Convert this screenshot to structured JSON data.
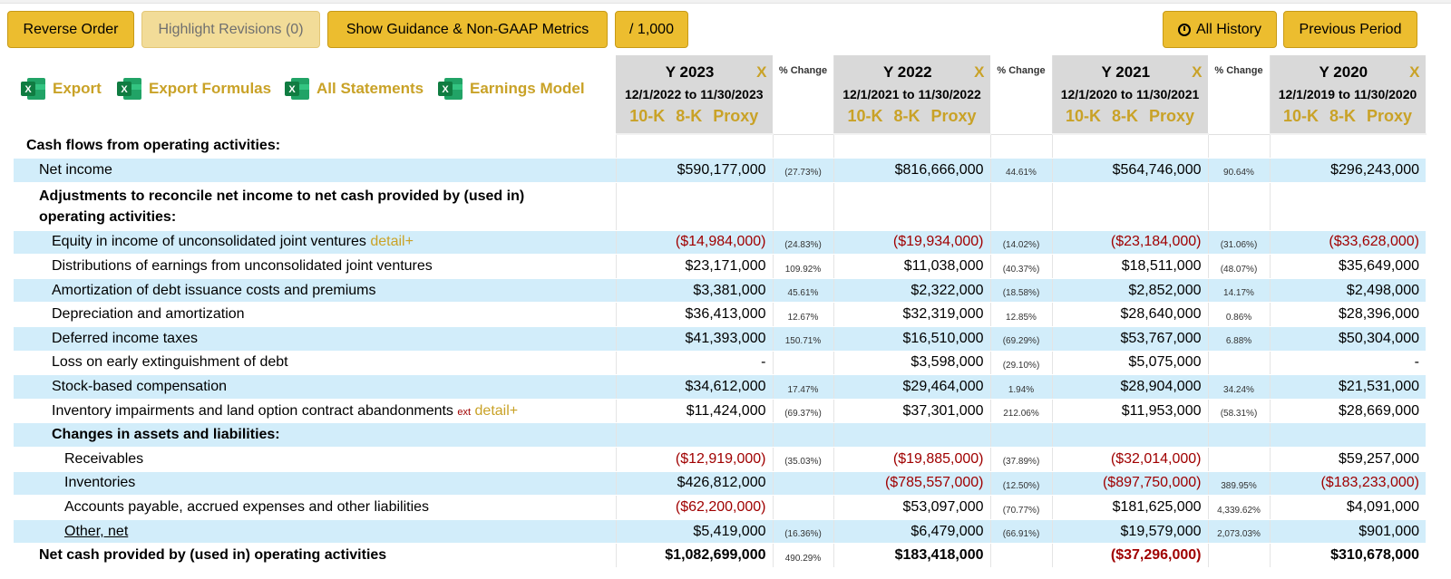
{
  "toolbar": {
    "reverse_order": "Reverse Order",
    "highlight_revisions": "Highlight Revisions (0)",
    "show_guidance": "Show Guidance & Non-GAAP Metrics",
    "scale": "/ 1,000",
    "all_history": "All History",
    "previous_period": "Previous Period"
  },
  "export_links": {
    "export": "Export",
    "export_formulas": "Export Formulas",
    "all_statements": "All Statements",
    "earnings_model": "Earnings Model"
  },
  "pct_change_header": "% Change",
  "columns": [
    {
      "year": "Y 2023",
      "x": "X",
      "range": "12/1/2022 to 11/30/2023",
      "links": [
        "10-K",
        "8-K",
        "Proxy"
      ]
    },
    {
      "year": "Y 2022",
      "x": "X",
      "range": "12/1/2021 to 11/30/2022",
      "links": [
        "10-K",
        "8-K",
        "Proxy"
      ]
    },
    {
      "year": "Y 2021",
      "x": "X",
      "range": "12/1/2020 to 11/30/2021",
      "links": [
        "10-K",
        "8-K",
        "Proxy"
      ]
    },
    {
      "year": "Y 2020",
      "x": "X",
      "range": "12/1/2019 to 11/30/2020",
      "links": [
        "10-K",
        "8-K",
        "Proxy"
      ]
    }
  ],
  "rows": [
    {
      "label": "Cash flows from operating activities:",
      "values": [
        "",
        "",
        "",
        ""
      ],
      "pcts": [
        "",
        "",
        ""
      ]
    },
    {
      "label": "Net income",
      "values": [
        "$590,177,000",
        "$816,666,000",
        "$564,746,000",
        "$296,243,000"
      ],
      "pcts": [
        "(27.73%)",
        "44.61%",
        "90.64%"
      ]
    },
    {
      "label": "Adjustments to reconcile net income to net cash provided by (used in) operating activities:",
      "values": [
        "",
        "",
        "",
        ""
      ],
      "pcts": [
        "",
        "",
        ""
      ]
    },
    {
      "label": "Equity in income of unconsolidated joint ventures",
      "detail": "detail+",
      "values": [
        "($14,984,000)",
        "($19,934,000)",
        "($23,184,000)",
        "($33,628,000)"
      ],
      "pcts": [
        "(24.83%)",
        "(14.02%)",
        "(31.06%)"
      ]
    },
    {
      "label": "Distributions of earnings from unconsolidated joint ventures",
      "values": [
        "$23,171,000",
        "$11,038,000",
        "$18,511,000",
        "$35,649,000"
      ],
      "pcts": [
        "109.92%",
        "(40.37%)",
        "(48.07%)"
      ]
    },
    {
      "label": "Amortization of debt issuance costs and premiums",
      "values": [
        "$3,381,000",
        "$2,322,000",
        "$2,852,000",
        "$2,498,000"
      ],
      "pcts": [
        "45.61%",
        "(18.58%)",
        "14.17%"
      ]
    },
    {
      "label": "Depreciation and amortization",
      "values": [
        "$36,413,000",
        "$32,319,000",
        "$28,640,000",
        "$28,396,000"
      ],
      "pcts": [
        "12.67%",
        "12.85%",
        "0.86%"
      ]
    },
    {
      "label": "Deferred income taxes",
      "values": [
        "$41,393,000",
        "$16,510,000",
        "$53,767,000",
        "$50,304,000"
      ],
      "pcts": [
        "150.71%",
        "(69.29%)",
        "6.88%"
      ]
    },
    {
      "label": "Loss on early extinguishment of debt",
      "values": [
        "-",
        "$3,598,000",
        "$5,075,000",
        "-"
      ],
      "pcts": [
        "",
        "(29.10%)",
        ""
      ]
    },
    {
      "label": "Stock-based compensation",
      "values": [
        "$34,612,000",
        "$29,464,000",
        "$28,904,000",
        "$21,531,000"
      ],
      "pcts": [
        "17.47%",
        "1.94%",
        "34.24%"
      ]
    },
    {
      "label": "Inventory impairments and land option contract abandonments",
      "ext": "ext",
      "detail": "detail+",
      "values": [
        "$11,424,000",
        "$37,301,000",
        "$11,953,000",
        "$28,669,000"
      ],
      "pcts": [
        "(69.37%)",
        "212.06%",
        "(58.31%)"
      ]
    },
    {
      "label": "Changes in assets and liabilities:",
      "values": [
        "",
        "",
        "",
        ""
      ],
      "pcts": [
        "",
        "",
        ""
      ]
    },
    {
      "label": "Receivables",
      "values": [
        "($12,919,000)",
        "($19,885,000)",
        "($32,014,000)",
        "$59,257,000"
      ],
      "pcts": [
        "(35.03%)",
        "(37.89%)",
        ""
      ]
    },
    {
      "label": "Inventories",
      "values": [
        "$426,812,000",
        "($785,557,000)",
        "($897,750,000)",
        "($183,233,000)"
      ],
      "pcts": [
        "",
        "(12.50%)",
        "389.95%"
      ]
    },
    {
      "label": "Accounts payable, accrued expenses and other liabilities",
      "values": [
        "($62,200,000)",
        "$53,097,000",
        "$181,625,000",
        "$4,091,000"
      ],
      "pcts": [
        "",
        "(70.77%)",
        "4,339.62%"
      ]
    },
    {
      "label": "Other, net",
      "values": [
        "$5,419,000",
        "$6,479,000",
        "$19,579,000",
        "$901,000"
      ],
      "pcts": [
        "(16.36%)",
        "(66.91%)",
        "2,073.03%"
      ]
    },
    {
      "label": "Net cash provided by (used in) operating activities",
      "values": [
        "$1,082,699,000",
        "$183,418,000",
        "($37,296,000)",
        "$310,678,000"
      ],
      "pcts": [
        "490.29%",
        "",
        ""
      ]
    }
  ],
  "colors": {
    "accent_gold": "#ecbd2f",
    "link_gold": "#c9a227",
    "row_blue": "#d2edfa",
    "negative": "#a00000"
  },
  "icons": {
    "excel": "excel-icon",
    "clock": "clock-icon"
  }
}
